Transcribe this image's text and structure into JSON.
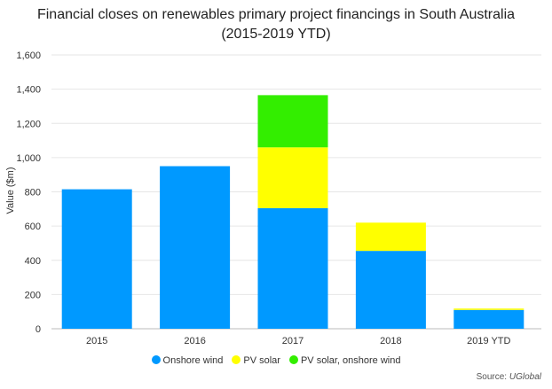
{
  "chart_data": {
    "type": "bar",
    "stacked": true,
    "title_line1": "Financial closes on renewables primary project financings in South Australia",
    "title_line2": "(2015-2019 YTD)",
    "xlabel": "",
    "ylabel": "Value ($m)",
    "ylim": [
      0,
      1600
    ],
    "yticks": [
      "0",
      "200",
      "400",
      "600",
      "800",
      "1,000",
      "1,200",
      "1,400",
      "1,600"
    ],
    "ytick_values": [
      0,
      200,
      400,
      600,
      800,
      1000,
      1200,
      1400,
      1600
    ],
    "grid": true,
    "legend_position": "bottom",
    "categories": [
      "2015",
      "2016",
      "2017",
      "2018",
      "2019 YTD"
    ],
    "series": [
      {
        "name": "Onshore wind",
        "color": "#0099ff",
        "values": [
          815,
          950,
          705,
          455,
          110
        ]
      },
      {
        "name": "PV solar",
        "color": "#ffff00",
        "values": [
          0,
          0,
          355,
          165,
          8
        ]
      },
      {
        "name": "PV solar, onshore wind",
        "color": "#33ee00",
        "values": [
          0,
          0,
          305,
          0,
          0
        ]
      }
    ]
  },
  "source_label": "Source:",
  "source_name": "UGlobal"
}
